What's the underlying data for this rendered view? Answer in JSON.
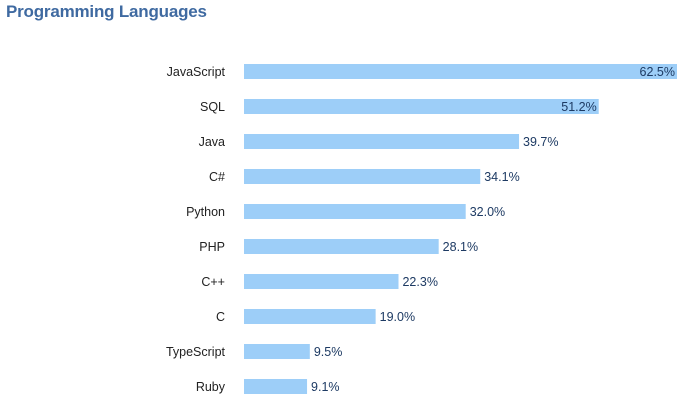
{
  "chart_data": {
    "type": "bar",
    "orientation": "horizontal",
    "title": "Programming Languages",
    "categories": [
      "JavaScript",
      "SQL",
      "Java",
      "C#",
      "Python",
      "PHP",
      "C++",
      "C",
      "TypeScript",
      "Ruby"
    ],
    "values": [
      62.5,
      51.2,
      39.7,
      34.1,
      32.0,
      28.1,
      22.3,
      19.0,
      9.5,
      9.1
    ],
    "value_labels": [
      "62.5%",
      "51.2%",
      "39.7%",
      "34.1%",
      "32.0%",
      "28.1%",
      "22.3%",
      "19.0%",
      "9.5%",
      "9.1%"
    ],
    "xlim": [
      0,
      62.5
    ],
    "grid": false,
    "colors": {
      "bar": "#9dcef8",
      "label": "#1d3a63",
      "title": "#3f6aa1",
      "category": "#222222"
    }
  }
}
